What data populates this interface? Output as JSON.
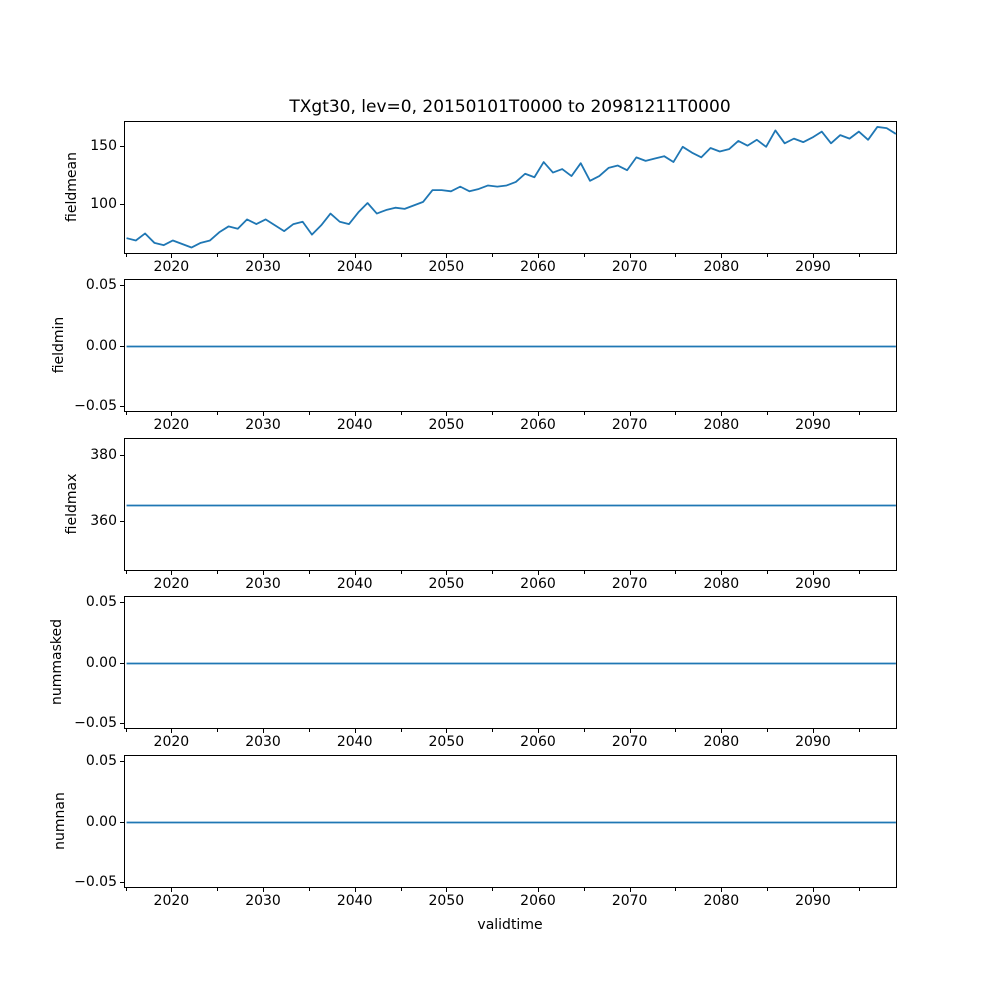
{
  "figure_title": "TXgt30, lev=0, 20150101T0000 to 20981211T0000",
  "xlabel": "validtime",
  "line_color": "#1f77b4",
  "axis_color": "#000000",
  "background_color": "#ffffff",
  "x_axis": {
    "lim": [
      2014.83,
      2099.17
    ],
    "major_tick_values": [
      2020,
      2030,
      2040,
      2050,
      2060,
      2070,
      2080,
      2090
    ],
    "major_tick_labels": [
      "2020",
      "2030",
      "2040",
      "2050",
      "2060",
      "2070",
      "2080",
      "2090"
    ],
    "minor_tick_values": [
      2015,
      2025,
      2035,
      2045,
      2055,
      2065,
      2075,
      2085,
      2095
    ]
  },
  "chart_data": [
    {
      "type": "line",
      "name": "fieldmean",
      "ylabel": "fieldmean",
      "x_start": 2015,
      "x_end": 2098.94,
      "values": [
        72,
        70,
        76,
        68,
        66,
        70,
        67,
        64,
        68,
        70,
        77,
        82,
        80,
        88,
        84,
        88,
        83,
        78,
        84,
        86,
        75,
        83,
        93,
        86,
        84,
        94,
        102,
        93,
        96,
        98,
        97,
        100,
        103,
        113,
        113,
        112,
        116,
        112,
        114,
        117,
        116,
        117,
        120,
        127,
        124,
        137,
        128,
        131,
        125,
        136,
        121,
        125,
        132,
        134,
        130,
        141,
        138,
        140,
        142,
        137,
        150,
        145,
        141,
        149,
        146,
        148,
        155,
        151,
        156,
        150,
        164,
        153,
        157,
        154,
        158,
        163,
        153,
        160,
        157,
        163,
        156,
        167,
        166,
        161
      ],
      "ylim": [
        57.6,
        171.2
      ],
      "ytick_values": [
        100,
        150
      ],
      "ytick_labels": [
        "100",
        "150"
      ],
      "grid": false,
      "legend": null
    },
    {
      "type": "line",
      "name": "fieldmin",
      "ylabel": "fieldmin",
      "x_start": 2015,
      "x_end": 2098.94,
      "constant": 0,
      "ylim": [
        -0.055,
        0.055
      ],
      "ytick_values": [
        -0.05,
        0,
        0.05
      ],
      "ytick_labels": [
        "−0.05",
        "0.00",
        "0.05"
      ],
      "grid": false,
      "legend": null
    },
    {
      "type": "line",
      "name": "fieldmax",
      "ylabel": "fieldmax",
      "x_start": 2015,
      "x_end": 2098.94,
      "constant": 365,
      "ylim": [
        344.9,
        385.1
      ],
      "ytick_values": [
        360,
        380
      ],
      "ytick_labels": [
        "360",
        "380"
      ],
      "grid": false,
      "legend": null
    },
    {
      "type": "line",
      "name": "nummasked",
      "ylabel": "nummasked",
      "x_start": 2015,
      "x_end": 2098.94,
      "constant": 0,
      "ylim": [
        -0.055,
        0.055
      ],
      "ytick_values": [
        -0.05,
        0,
        0.05
      ],
      "ytick_labels": [
        "−0.05",
        "0.00",
        "0.05"
      ],
      "grid": false,
      "legend": null
    },
    {
      "type": "line",
      "name": "numnan",
      "ylabel": "numnan",
      "x_start": 2015,
      "x_end": 2098.94,
      "constant": 0,
      "ylim": [
        -0.055,
        0.055
      ],
      "ytick_values": [
        -0.05,
        0,
        0.05
      ],
      "ytick_labels": [
        "−0.05",
        "0.00",
        "0.05"
      ],
      "grid": false,
      "legend": null
    }
  ]
}
